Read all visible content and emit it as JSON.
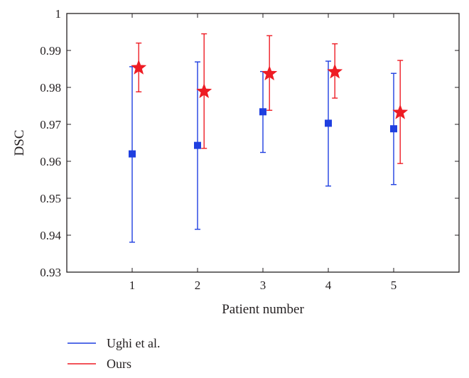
{
  "chart_data": {
    "type": "scatter",
    "xlabel": "Patient number",
    "ylabel": "DSC",
    "xlim": [
      0,
      6
    ],
    "ylim": [
      0.93,
      1.0
    ],
    "x_ticks": [
      1,
      2,
      3,
      4,
      5
    ],
    "y_ticks": [
      0.93,
      0.94,
      0.95,
      0.96,
      0.97,
      0.98,
      0.99,
      1
    ],
    "x_tick_labels": [
      "1",
      "2",
      "3",
      "4",
      "5"
    ],
    "y_tick_labels": [
      "0.93",
      "0.94",
      "0.95",
      "0.96",
      "0.97",
      "0.98",
      "0.99",
      "1"
    ],
    "grid": false,
    "legend_position": "bottom-left, below plot",
    "series": [
      {
        "name": "Ughi et al.",
        "color": "#1f3fe0",
        "marker": "square",
        "x_offset": 0,
        "x": [
          1,
          2,
          3,
          4,
          5
        ],
        "y": [
          0.962,
          0.9643,
          0.9734,
          0.9703,
          0.9688
        ],
        "err_low": [
          0.9381,
          0.9416,
          0.9624,
          0.9533,
          0.9537
        ],
        "err_high": [
          0.9856,
          0.9869,
          0.9843,
          0.9871,
          0.9838
        ]
      },
      {
        "name": "Ours",
        "color": "#ee1c24",
        "marker": "star",
        "x_offset": 0.1,
        "x": [
          1,
          2,
          3,
          4,
          5
        ],
        "y": [
          0.9853,
          0.9789,
          0.9837,
          0.9842,
          0.9732
        ],
        "err_low": [
          0.9788,
          0.9635,
          0.9738,
          0.9771,
          0.9594
        ],
        "err_high": [
          0.992,
          0.9945,
          0.994,
          0.9918,
          0.9873
        ]
      }
    ]
  }
}
